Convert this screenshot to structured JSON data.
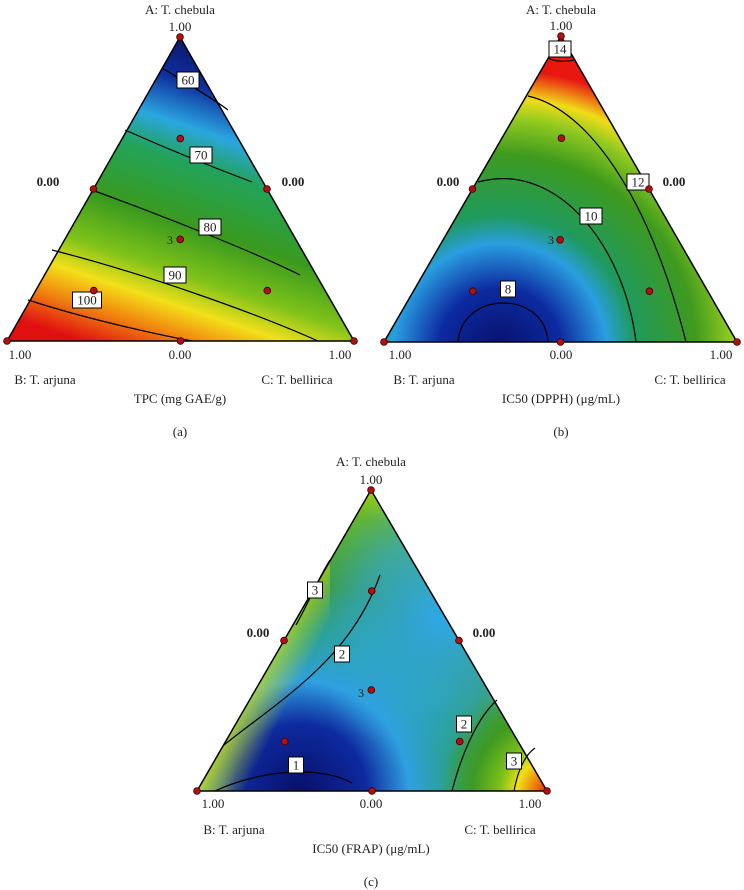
{
  "chart_data": [
    {
      "type": "ternary-contour",
      "panel_label": "(a)",
      "xlabel": "TPC (mg GAE/g)",
      "vertices": {
        "top": {
          "name": "A: T. chebula",
          "value_label": "1.00"
        },
        "left": {
          "name": "B: T. arjuna",
          "value_label": "1.00"
        },
        "right": {
          "name": "C: T. bellirica",
          "value_label": "1.00"
        }
      },
      "edge_labels": {
        "left": "0.00",
        "right": "0.00",
        "bottom": "0.00"
      },
      "center_replicates": "3",
      "contours": [
        "60",
        "70",
        "80",
        "90",
        "100"
      ],
      "color_trend": "high at B vertex (red), low at A vertex (blue)",
      "design_points": [
        [
          1,
          0,
          0
        ],
        [
          0,
          1,
          0
        ],
        [
          0,
          0,
          1
        ],
        [
          0.5,
          0.5,
          0
        ],
        [
          0.5,
          0,
          0.5
        ],
        [
          0,
          0.5,
          0.5
        ],
        [
          0.333,
          0.333,
          0.333
        ],
        [
          0.667,
          0.167,
          0.167
        ],
        [
          0.167,
          0.667,
          0.167
        ],
        [
          0.167,
          0.167,
          0.667
        ]
      ]
    },
    {
      "type": "ternary-contour",
      "panel_label": "(b)",
      "xlabel": "IC50 (DPPH) (μg/mL)",
      "vertices": {
        "top": {
          "name": "A: T. chebula",
          "value_label": "1.00"
        },
        "left": {
          "name": "B: T. arjuna",
          "value_label": "1.00"
        },
        "right": {
          "name": "C: T. bellirica",
          "value_label": "1.00"
        }
      },
      "edge_labels": {
        "left": "0.00",
        "right": "0.00",
        "bottom": "0.00"
      },
      "center_replicates": "3",
      "contours": [
        "14",
        "12",
        "10",
        "8"
      ],
      "color_trend": "high at A and C vertices (red), low near B-C edge center (blue)",
      "design_points": [
        [
          1,
          0,
          0
        ],
        [
          0,
          1,
          0
        ],
        [
          0,
          0,
          1
        ],
        [
          0.5,
          0.5,
          0
        ],
        [
          0.5,
          0,
          0.5
        ],
        [
          0,
          0.5,
          0.5
        ],
        [
          0.333,
          0.333,
          0.333
        ],
        [
          0.667,
          0.167,
          0.167
        ],
        [
          0.167,
          0.667,
          0.167
        ],
        [
          0.167,
          0.167,
          0.667
        ]
      ]
    },
    {
      "type": "ternary-contour",
      "panel_label": "(c)",
      "xlabel": "IC50 (FRAP) (μg/mL)",
      "vertices": {
        "top": {
          "name": "A: T. chebula",
          "value_label": "1.00"
        },
        "left": {
          "name": "B: T. arjuna",
          "value_label": "1.00"
        },
        "right": {
          "name": "C: T. bellirica",
          "value_label": "1.00"
        }
      },
      "edge_labels": {
        "left": "0.00",
        "right": "0.00",
        "bottom": "0.00"
      },
      "center_replicates": "3",
      "contours": [
        "3",
        "2",
        "1",
        "2",
        "3"
      ],
      "color_trend": "high at C vertex (red), low near B-C edge (blue)",
      "design_points": [
        [
          1,
          0,
          0
        ],
        [
          0,
          1,
          0
        ],
        [
          0,
          0,
          1
        ],
        [
          0.5,
          0.5,
          0
        ],
        [
          0.5,
          0,
          0.5
        ],
        [
          0,
          0.5,
          0.5
        ],
        [
          0.333,
          0.333,
          0.333
        ],
        [
          0.667,
          0.167,
          0.167
        ],
        [
          0.167,
          0.667,
          0.167
        ],
        [
          0.167,
          0.167,
          0.667
        ]
      ]
    }
  ]
}
